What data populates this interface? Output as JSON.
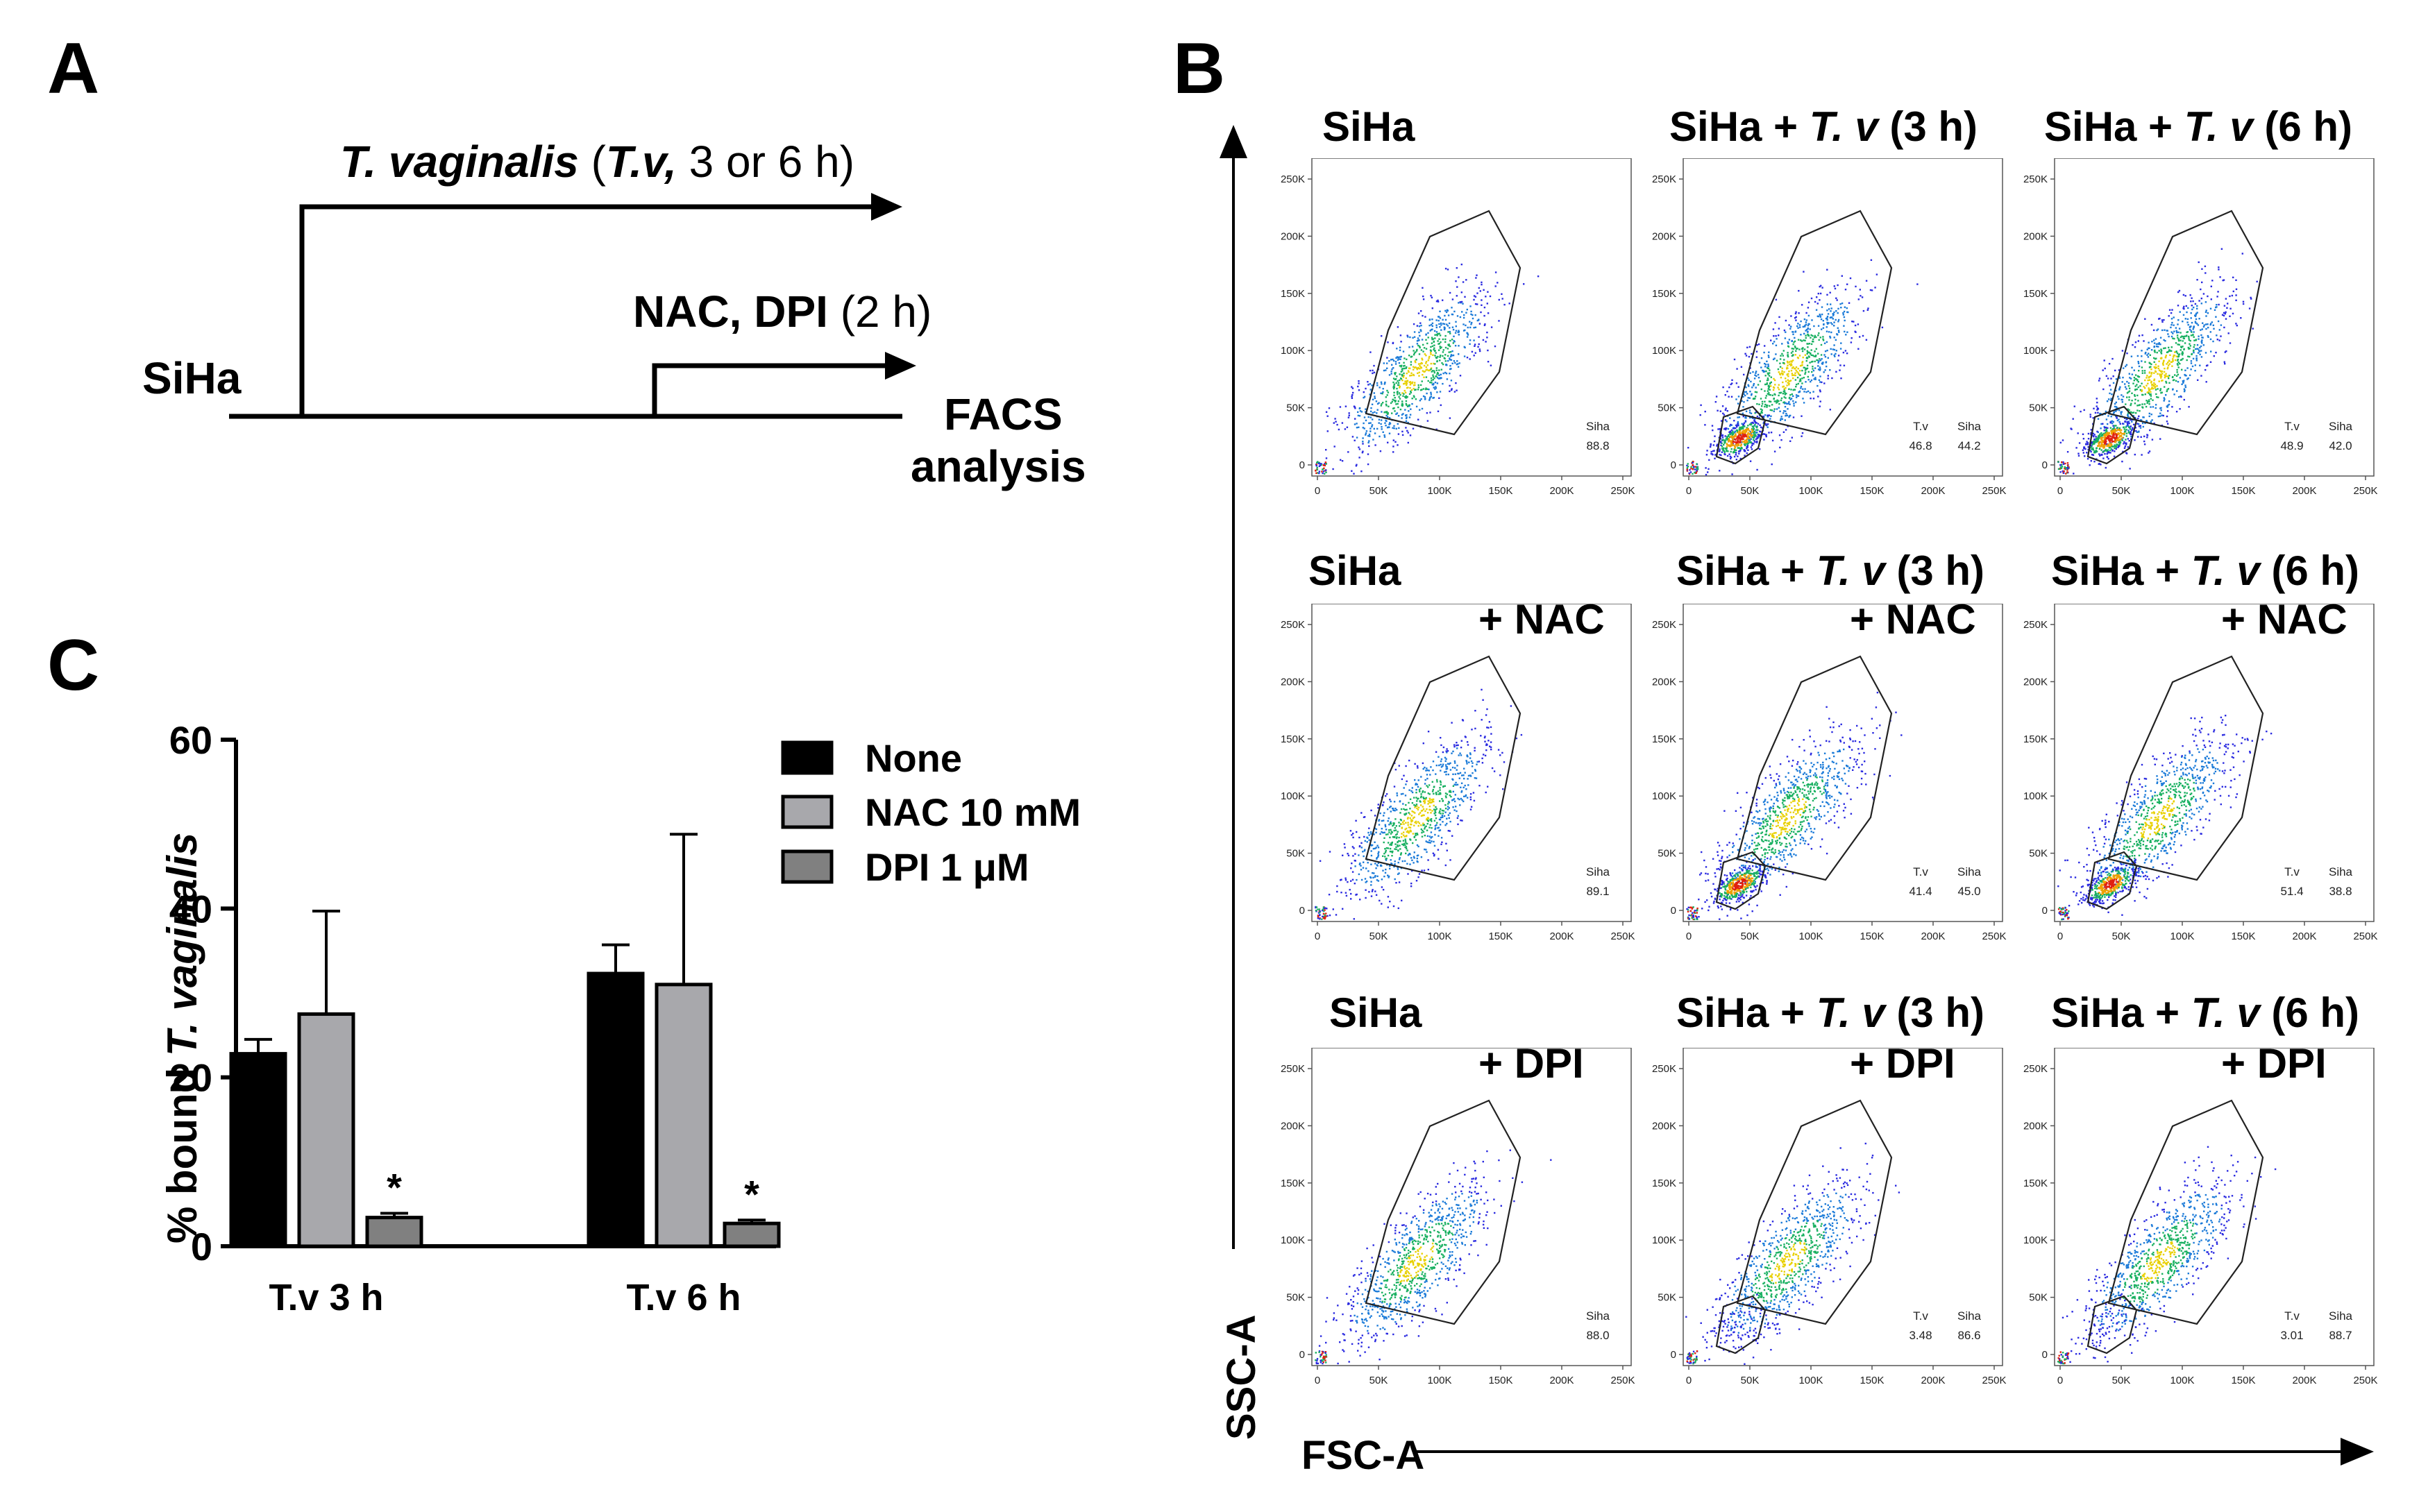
{
  "panel_labels": {
    "a": "A",
    "b": "B",
    "c": "C"
  },
  "schematic": {
    "tv_name": "T. vaginalis",
    "tv_paren_open": " (",
    "tv_abbr": "T.v,",
    "tv_rest": " 3 or 6 h)",
    "drug_name": "NAC, DPI",
    "drug_rest": " (2 h)",
    "cell_line": "SiHa",
    "readout_line1": "FACS",
    "readout_line2": "analysis"
  },
  "facs": {
    "x_axis_label": "FSC-A",
    "y_axis_label": "SSC-A",
    "x_ticks": [
      "0",
      "50K",
      "100K",
      "150K",
      "200K",
      "250K"
    ],
    "y_ticks": [
      "0",
      "50K",
      "100K",
      "150K",
      "200K",
      "250K"
    ],
    "plots": [
      {
        "title_pre": "SiHa",
        "title_it": "",
        "title_post": "",
        "treatment": "",
        "tv_label": "",
        "tv_value": "",
        "siha_label": "Siha",
        "siha_value": "88.8"
      },
      {
        "title_pre": "SiHa + ",
        "title_it": "T. v",
        "title_post": " (3 h)",
        "treatment": "",
        "tv_label": "T.v",
        "tv_value": "46.8",
        "siha_label": "Siha",
        "siha_value": "44.2"
      },
      {
        "title_pre": "SiHa + ",
        "title_it": "T. v",
        "title_post": " (6 h)",
        "treatment": "",
        "tv_label": "T.v",
        "tv_value": "48.9",
        "siha_label": "Siha",
        "siha_value": "42.0"
      },
      {
        "title_pre": "SiHa",
        "title_it": "",
        "title_post": "",
        "treatment": "+ NAC",
        "tv_label": "",
        "tv_value": "",
        "siha_label": "Siha",
        "siha_value": "89.1"
      },
      {
        "title_pre": "SiHa + ",
        "title_it": "T. v",
        "title_post": " (3 h)",
        "treatment": "+ NAC",
        "tv_label": "T.v",
        "tv_value": "41.4",
        "siha_label": "Siha",
        "siha_value": "45.0"
      },
      {
        "title_pre": "SiHa + ",
        "title_it": "T. v",
        "title_post": " (6 h)",
        "treatment": "+ NAC",
        "tv_label": "T.v",
        "tv_value": "51.4",
        "siha_label": "Siha",
        "siha_value": "38.8"
      },
      {
        "title_pre": "SiHa",
        "title_it": "",
        "title_post": "",
        "treatment": "+ DPI",
        "tv_label": "",
        "tv_value": "",
        "siha_label": "Siha",
        "siha_value": "88.0"
      },
      {
        "title_pre": "SiHa + ",
        "title_it": "T. v",
        "title_post": " (3 h)",
        "treatment": "+ DPI",
        "tv_label": "T.v",
        "tv_value": "3.48",
        "siha_label": "Siha",
        "siha_value": "86.6"
      },
      {
        "title_pre": "SiHa + ",
        "title_it": "T. v",
        "title_post": " (6 h)",
        "treatment": "+ DPI",
        "tv_label": "T.v",
        "tv_value": "3.01",
        "siha_label": "Siha",
        "siha_value": "88.7"
      }
    ]
  },
  "chart_data": {
    "type": "bar",
    "title": "",
    "ylabel_pre": "% bound ",
    "ylabel_italic": "T. vaginalis",
    "xlabel": "",
    "categories": [
      "T.v 3 h",
      "T.v 6 h"
    ],
    "ylim": [
      0,
      60
    ],
    "yticks": [
      0,
      20,
      40,
      60
    ],
    "series": [
      {
        "name": "None",
        "color": "#000000",
        "values": [
          22.8,
          32.3
        ],
        "errors": [
          1.7,
          3.4
        ],
        "significant": [
          "",
          ""
        ]
      },
      {
        "name": "NAC 10 mM",
        "color": "#a8a8ac",
        "values": [
          27.5,
          31.0
        ],
        "errors": [
          12.2,
          17.8
        ],
        "significant": [
          "",
          ""
        ]
      },
      {
        "name": "DPI 1 μM",
        "color": "#808080",
        "values": [
          3.4,
          2.7
        ],
        "errors": [
          0.5,
          0.4
        ],
        "significant": [
          "*",
          "*"
        ]
      }
    ],
    "legend_position": "top-right"
  }
}
